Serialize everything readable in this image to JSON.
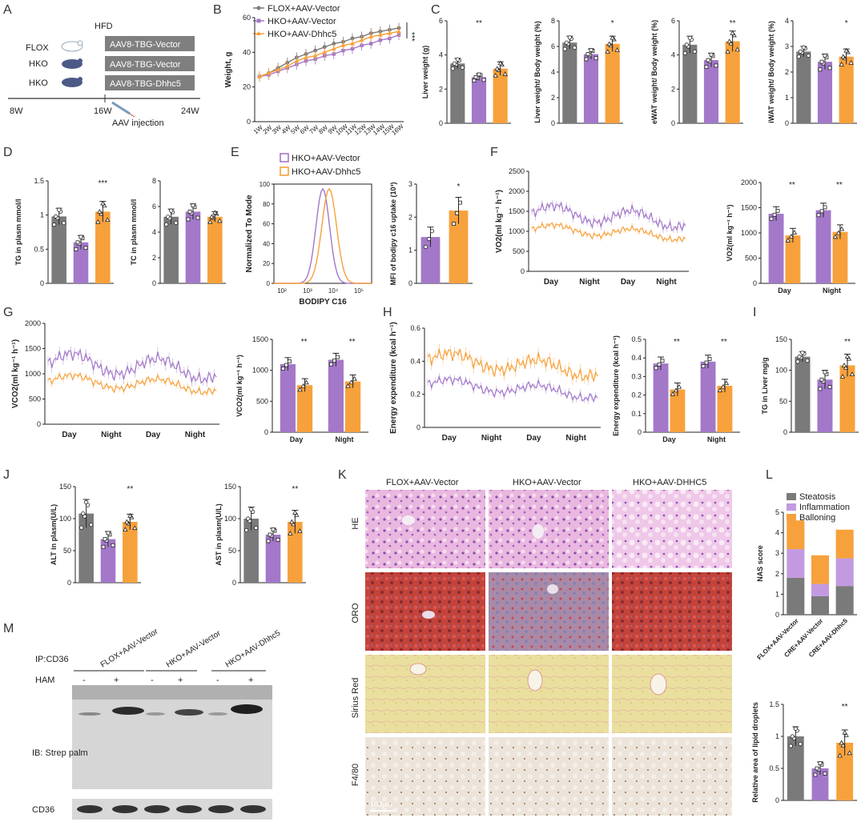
{
  "colors": {
    "gray": "#7a7a7a",
    "purple": "#a378c9",
    "orange": "#f7a13c",
    "dark": "#222222"
  },
  "panels": {
    "A": {
      "letter": "A",
      "hfd": "HFD",
      "groups": [
        "FLOX",
        "HKO",
        "HKO"
      ],
      "treatments": [
        "AAV8-TBG-Vector",
        "AAV8-TBG-Vector",
        "AAV8-TBG-Dhhc5"
      ],
      "timeline": [
        "8W",
        "16W",
        "24W"
      ],
      "injection": "AAV  injection"
    },
    "B": {
      "letter": "B",
      "legend": [
        "FLOX+AAV-Vector",
        "HKO+AAV-Vector",
        "HKO+AAV-Dhhc5"
      ],
      "sig": "***"
    },
    "C": {
      "letter": "C",
      "sig": [
        "**",
        "*",
        "**",
        "*"
      ]
    },
    "D": {
      "letter": "D",
      "sig": [
        "***",
        ""
      ]
    },
    "E": {
      "letter": "E",
      "legend": [
        "HKO+AAV-Vector",
        "HKO+AAV-Dhhc5"
      ],
      "ylabel": "Normalized To Mode",
      "xlabel": "BODIPY C16",
      "sig": "*"
    },
    "F": {
      "letter": "F",
      "sig": [
        "**",
        "**"
      ]
    },
    "G": {
      "letter": "G",
      "sig": [
        "**",
        "**"
      ]
    },
    "H": {
      "letter": "H",
      "sig": [
        "**",
        "**"
      ]
    },
    "I": {
      "letter": "I",
      "sig": "**"
    },
    "J": {
      "letter": "J",
      "sig": [
        "**",
        "**"
      ]
    },
    "K": {
      "letter": "K",
      "columns": [
        "FLOX+AAV-Vector",
        "HKO+AAV-Vector",
        "HKO+AAV-DHHC5"
      ],
      "rows": [
        "HE",
        "ORO",
        "Sirius Red",
        "F4/80"
      ],
      "scalebar": "100μm"
    },
    "L": {
      "letter": "L",
      "legend": [
        "Steatosis",
        "Inflammation",
        "Balloning"
      ],
      "sig": "**"
    },
    "M": {
      "letter": "M",
      "ip": "IP:CD36",
      "ham": "HAM",
      "lanes": [
        "FLOX+AAV-Vector",
        "HKO+AAV-Vector",
        "HKO+AAV-Dhhc5"
      ],
      "signs": [
        "-",
        "+",
        "-",
        "+",
        "-",
        "+"
      ],
      "ib": "IB: Strep palm",
      "cd36": "CD36"
    }
  },
  "chart_data": [
    {
      "id": "B",
      "type": "line",
      "ylabel": "Weight, g",
      "ylim": [
        0,
        60
      ],
      "yticks": [
        0,
        20,
        40,
        60
      ],
      "categories": [
        "1W",
        "2W",
        "3W",
        "4W",
        "5W",
        "6W",
        "7W",
        "8W",
        "9W",
        "10W",
        "11W",
        "12W",
        "13W",
        "14W",
        "15W",
        "16W"
      ],
      "series": [
        {
          "name": "FLOX+AAV-Vector",
          "values": [
            26,
            28,
            31,
            34,
            37,
            39,
            41,
            43,
            45,
            46,
            48,
            49,
            51,
            52,
            53,
            54
          ]
        },
        {
          "name": "HKO+AAV-Vector",
          "values": [
            26,
            27,
            29,
            31,
            33,
            35,
            36,
            38,
            39,
            41,
            42,
            44,
            45,
            47,
            48,
            50
          ]
        },
        {
          "name": "HKO+AAV-Dhhc5",
          "values": [
            26,
            28,
            30,
            32,
            35,
            37,
            38,
            40,
            42,
            44,
            45,
            47,
            49,
            50,
            51,
            52
          ]
        }
      ]
    },
    {
      "id": "C1",
      "type": "bar",
      "ylabel": "Liver weight (g)",
      "ylim": [
        0,
        6
      ],
      "yticks": [
        0,
        2,
        4,
        6
      ],
      "values": [
        3.5,
        2.7,
        3.2
      ],
      "err": [
        0.3,
        0.2,
        0.4
      ]
    },
    {
      "id": "C2",
      "type": "bar",
      "ylabel": "Liver weight/ Body weight (%)",
      "ylim": [
        0,
        8
      ],
      "yticks": [
        0,
        2,
        4,
        6,
        8
      ],
      "values": [
        6.3,
        5.4,
        6.2
      ],
      "err": [
        0.5,
        0.4,
        0.6
      ]
    },
    {
      "id": "C3",
      "type": "bar",
      "ylabel": "eWAT weight/ Body weight (%)",
      "ylim": [
        0,
        6
      ],
      "yticks": [
        0,
        2,
        4,
        6
      ],
      "values": [
        4.6,
        3.7,
        4.8
      ],
      "err": [
        0.5,
        0.4,
        0.6
      ]
    },
    {
      "id": "C4",
      "type": "bar",
      "ylabel": "iWAT weight/ Body weight (%)",
      "ylim": [
        0,
        4
      ],
      "yticks": [
        0,
        1,
        2,
        3,
        4
      ],
      "values": [
        2.8,
        2.4,
        2.6
      ],
      "err": [
        0.2,
        0.3,
        0.3
      ]
    },
    {
      "id": "D1",
      "type": "bar",
      "ylabel": "TG in plasm mmol/l",
      "ylim": [
        0,
        1.5
      ],
      "yticks": [
        0,
        0.5,
        1.0,
        1.5
      ],
      "values": [
        0.98,
        0.6,
        1.05
      ],
      "err": [
        0.12,
        0.1,
        0.15
      ]
    },
    {
      "id": "D2",
      "type": "bar",
      "ylabel": "TC in plasm mmol/l",
      "ylim": [
        0,
        8
      ],
      "yticks": [
        0,
        2,
        4,
        6,
        8
      ],
      "values": [
        5.2,
        5.6,
        5.2
      ],
      "err": [
        0.6,
        0.6,
        0.4
      ]
    },
    {
      "id": "E1",
      "type": "histogram",
      "ylabel": "Normalized To Mode",
      "yticks": [
        0,
        20,
        40,
        60,
        80,
        100
      ],
      "xticks": [
        "10²",
        "10³",
        "10⁴",
        "10⁵"
      ]
    },
    {
      "id": "E2",
      "type": "bar",
      "ylabel": "MFI of bodipy c16 uptake (10³)",
      "ylim": [
        0,
        3
      ],
      "yticks": [
        0,
        1,
        2,
        3
      ],
      "values": [
        1.4,
        2.2
      ],
      "err": [
        0.3,
        0.4
      ]
    },
    {
      "id": "F1",
      "type": "line",
      "ylabel": "VO2(ml kg⁻¹ h⁻¹)",
      "ylim": [
        0,
        2500
      ],
      "yticks": [
        0,
        500,
        1000,
        1500,
        2000,
        2500
      ],
      "xlabels": [
        "Day",
        "Night",
        "Day",
        "Night"
      ]
    },
    {
      "id": "F2",
      "type": "bar",
      "ylabel": "VO2(ml kg⁻¹ h⁻¹)",
      "ylim": [
        0,
        2000
      ],
      "yticks": [
        0,
        500,
        1000,
        1500,
        2000
      ],
      "categories": [
        "Day",
        "Night"
      ],
      "series": [
        {
          "name": "HKO+AAV-Vector",
          "values": [
            1380,
            1450
          ]
        },
        {
          "name": "HKO+AAV-Dhhc5",
          "values": [
            950,
            1020
          ]
        }
      ]
    },
    {
      "id": "G1",
      "type": "line",
      "ylabel": "VCO2(ml kg⁻¹ h⁻¹)",
      "ylim": [
        0,
        2000
      ],
      "yticks": [
        0,
        500,
        1000,
        1500,
        2000
      ],
      "xlabels": [
        "Day",
        "Night",
        "Day",
        "Night"
      ]
    },
    {
      "id": "G2",
      "type": "bar",
      "ylabel": "VCO2(ml kg⁻¹ h⁻¹)",
      "ylim": [
        0,
        1500
      ],
      "yticks": [
        0,
        500,
        1000,
        1500
      ],
      "categories": [
        "Day",
        "Night"
      ],
      "series": [
        {
          "name": "HKO+AAV-Vector",
          "values": [
            1100,
            1170
          ]
        },
        {
          "name": "HKO+AAV-Dhhc5",
          "values": [
            760,
            820
          ]
        }
      ]
    },
    {
      "id": "H1",
      "type": "line",
      "ylabel": "Energy expenditure  (kcal h⁻¹)",
      "ylim": [
        0,
        0.6
      ],
      "yticks": [
        0.0,
        0.2,
        0.4,
        0.6
      ],
      "xlabels": [
        "Day",
        "Night",
        "Day",
        "Night"
      ]
    },
    {
      "id": "H2",
      "type": "bar",
      "ylabel": "Energy expenditure  (kcal h⁻¹)",
      "ylim": [
        0,
        0.5
      ],
      "yticks": [
        0.0,
        0.1,
        0.2,
        0.3,
        0.4,
        0.5
      ],
      "categories": [
        "Day",
        "Night"
      ],
      "series": [
        {
          "name": "HKO+AAV-Vector",
          "values": [
            0.37,
            0.38
          ]
        },
        {
          "name": "HKO+AAV-Dhhc5",
          "values": [
            0.23,
            0.25
          ]
        }
      ]
    },
    {
      "id": "I",
      "type": "bar",
      "ylabel": "TG in Liver mg/g",
      "ylim": [
        0,
        150
      ],
      "yticks": [
        0,
        50,
        100,
        150
      ],
      "values": [
        122,
        85,
        108
      ],
      "err": [
        8,
        15,
        18
      ]
    },
    {
      "id": "J1",
      "type": "bar",
      "ylabel": "ALT in plasm(U/L)",
      "ylim": [
        0,
        150
      ],
      "yticks": [
        0,
        50,
        100,
        150
      ],
      "values": [
        108,
        68,
        95
      ],
      "err": [
        22,
        12,
        12
      ]
    },
    {
      "id": "J2",
      "type": "bar",
      "ylabel": "AST in plasm(U/L)",
      "ylim": [
        0,
        150
      ],
      "yticks": [
        0,
        50,
        100,
        150
      ],
      "values": [
        100,
        75,
        95
      ],
      "err": [
        18,
        10,
        18
      ]
    },
    {
      "id": "L1",
      "type": "stacked-bar",
      "ylabel": "NAS score",
      "ylim": [
        0,
        5
      ],
      "yticks": [
        0,
        1,
        2,
        3,
        4,
        5
      ],
      "categories": [
        "FLOX+AAV-Vector",
        "CRE+AAV-Vector",
        "CRE+AAV-Dhhc5"
      ],
      "series": [
        {
          "name": "Steatosis",
          "values": [
            1.8,
            0.9,
            1.4
          ]
        },
        {
          "name": "Inflammation",
          "values": [
            1.4,
            0.6,
            1.35
          ]
        },
        {
          "name": "Balloning",
          "values": [
            1.4,
            1.4,
            1.4
          ]
        }
      ]
    },
    {
      "id": "L2",
      "type": "bar",
      "ylabel": "Relative area of lipid droplets",
      "ylim": [
        0,
        1.5
      ],
      "yticks": [
        0.0,
        0.5,
        1.0,
        1.5
      ],
      "values": [
        1.0,
        0.5,
        0.9
      ],
      "err": [
        0.15,
        0.1,
        0.2
      ]
    }
  ]
}
